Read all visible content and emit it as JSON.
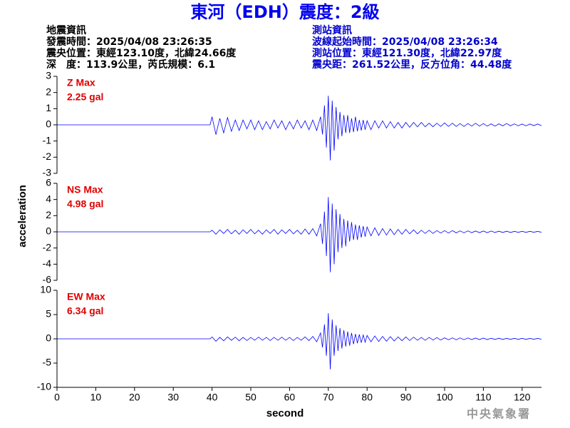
{
  "header": {
    "title": "東河（EDH）震度：2級",
    "left": [
      "地震資訊",
      "發震時間：2025/04/08 23:26:35",
      "震央位置：東經123.10度，北緯24.66度",
      "深　度：113.9公里，芮氏規模：6.1"
    ],
    "right": [
      "測站資訊",
      "波線起始時間：2025/04/08 23:26:34",
      "測站位置：東經121.30度，北緯22.97度",
      "震央距：261.52公里，反方位角：44.48度"
    ]
  },
  "footer": "中央氣象署",
  "chart_data": [
    {
      "type": "line",
      "label": "Z Max",
      "max_label": "2.25 gal",
      "color": "#0000ff",
      "label_color": "#e00000",
      "xlim": [
        0,
        125
      ],
      "ylim": [
        -3,
        3
      ],
      "yticks": [
        -3,
        -2,
        -1,
        0,
        1,
        2,
        3
      ],
      "x": [
        0,
        39.5,
        40,
        41,
        42,
        43,
        44,
        45,
        46,
        47,
        48,
        49,
        50,
        51,
        52,
        53,
        54,
        55,
        56,
        57,
        58,
        59,
        60,
        61,
        62,
        63,
        64,
        65,
        66,
        67,
        68,
        68.5,
        69,
        69.5,
        70,
        70.5,
        71,
        71.5,
        72,
        72.5,
        73,
        73.5,
        74,
        74.5,
        75,
        75.5,
        76,
        76.5,
        77,
        77.5,
        78,
        78.5,
        79,
        79.5,
        80,
        81,
        82,
        83,
        84,
        85,
        86,
        87,
        88,
        89,
        90,
        91,
        92,
        93,
        94,
        95,
        96,
        97,
        98,
        99,
        100,
        101,
        102,
        103,
        104,
        105,
        106,
        107,
        108,
        109,
        110,
        111,
        112,
        113,
        114,
        115,
        116,
        117,
        118,
        119,
        120,
        121,
        122,
        123,
        124,
        125
      ],
      "values": [
        0,
        0,
        0.5,
        -0.6,
        0.4,
        -0.5,
        0.45,
        -0.4,
        0.3,
        -0.35,
        0.3,
        -0.25,
        0.3,
        -0.3,
        0.25,
        -0.3,
        0.2,
        -0.25,
        0.3,
        -0.2,
        0.25,
        -0.3,
        0.2,
        -0.25,
        0.3,
        -0.2,
        0.25,
        -0.3,
        0.3,
        -0.35,
        0.5,
        -0.6,
        1.2,
        -1.4,
        1.8,
        -2.2,
        1.5,
        -1.6,
        1.1,
        -0.9,
        0.8,
        -0.7,
        0.6,
        -0.5,
        0.6,
        -0.5,
        0.4,
        -0.45,
        0.5,
        -0.4,
        0.3,
        -0.35,
        0.3,
        -0.3,
        0.25,
        -0.3,
        0.25,
        -0.2,
        0.25,
        -0.2,
        0.2,
        -0.2,
        0.15,
        -0.2,
        0.15,
        -0.15,
        0.15,
        -0.12,
        0.15,
        -0.12,
        0.1,
        -0.12,
        0.1,
        -0.1,
        0.12,
        -0.1,
        0.1,
        -0.1,
        0.08,
        -0.1,
        0.08,
        -0.08,
        0.1,
        -0.08,
        0.08,
        -0.08,
        0.06,
        -0.08,
        0.06,
        -0.06,
        0.08,
        -0.06,
        0.06,
        -0.06,
        0.05,
        -0.06,
        0.05,
        -0.05,
        0.05,
        -0.05
      ]
    },
    {
      "type": "line",
      "label": "NS Max",
      "max_label": "4.98 gal",
      "color": "#0000ff",
      "label_color": "#e00000",
      "ylabel": "acceleration",
      "xlim": [
        0,
        125
      ],
      "ylim": [
        -6,
        6
      ],
      "yticks": [
        -6,
        -4,
        -2,
        0,
        2,
        4,
        6
      ],
      "x": [
        0,
        39.5,
        40,
        41,
        42,
        43,
        44,
        45,
        46,
        47,
        48,
        49,
        50,
        51,
        52,
        53,
        54,
        55,
        56,
        57,
        58,
        59,
        60,
        61,
        62,
        63,
        64,
        65,
        66,
        67,
        68,
        68.5,
        69,
        69.5,
        70,
        70.5,
        71,
        71.5,
        72,
        72.5,
        73,
        73.5,
        74,
        74.5,
        75,
        75.5,
        76,
        76.5,
        77,
        77.5,
        78,
        78.5,
        79,
        79.5,
        80,
        81,
        82,
        83,
        84,
        85,
        86,
        87,
        88,
        89,
        90,
        91,
        92,
        93,
        94,
        95,
        96,
        97,
        98,
        99,
        100,
        101,
        102,
        103,
        104,
        105,
        106,
        107,
        108,
        109,
        110,
        111,
        112,
        113,
        114,
        115,
        116,
        117,
        118,
        119,
        120,
        121,
        122,
        123,
        124,
        125
      ],
      "values": [
        0,
        0,
        0.2,
        -0.3,
        0.25,
        -0.2,
        0.3,
        -0.25,
        0.2,
        -0.3,
        0.25,
        -0.2,
        0.3,
        -0.25,
        0.2,
        -0.3,
        0.25,
        -0.2,
        0.3,
        -0.3,
        0.25,
        -0.2,
        0.3,
        -0.25,
        0.2,
        -0.3,
        0.35,
        -0.3,
        0.4,
        -0.5,
        1.0,
        -1.5,
        2.5,
        -3.0,
        4.3,
        -5.0,
        3.5,
        -4.0,
        2.8,
        -2.5,
        2.2,
        -2.0,
        1.6,
        -1.8,
        1.4,
        -1.2,
        1.2,
        -1.0,
        0.9,
        -1.0,
        0.8,
        -0.7,
        0.7,
        -0.6,
        0.6,
        -0.5,
        0.5,
        -0.45,
        0.4,
        -0.4,
        0.35,
        -0.35,
        0.3,
        -0.3,
        0.3,
        -0.25,
        0.25,
        -0.25,
        0.2,
        -0.2,
        0.2,
        -0.2,
        0.15,
        -0.15,
        0.15,
        -0.15,
        0.15,
        -0.12,
        0.12,
        -0.12,
        0.12,
        -0.1,
        0.1,
        -0.1,
        0.1,
        -0.1,
        0.1,
        -0.08,
        0.08,
        -0.08,
        0.08,
        -0.08,
        0.06,
        -0.06,
        0.06,
        -0.06,
        0.06,
        -0.05,
        0.05,
        -0.05
      ]
    },
    {
      "type": "line",
      "label": "EW Max",
      "max_label": "6.34 gal",
      "color": "#0000ff",
      "label_color": "#e00000",
      "xlabel": "second",
      "xlim": [
        0,
        125
      ],
      "xticks": [
        0,
        10,
        20,
        30,
        40,
        50,
        60,
        70,
        80,
        90,
        100,
        110,
        120
      ],
      "ylim": [
        -10,
        10
      ],
      "yticks": [
        -10,
        -5,
        0,
        5,
        10
      ],
      "x": [
        0,
        39.5,
        40,
        41,
        42,
        43,
        44,
        45,
        46,
        47,
        48,
        49,
        50,
        51,
        52,
        53,
        54,
        55,
        56,
        57,
        58,
        59,
        60,
        61,
        62,
        63,
        64,
        65,
        66,
        67,
        68,
        68.5,
        69,
        69.5,
        70,
        70.5,
        71,
        71.5,
        72,
        72.5,
        73,
        73.5,
        74,
        74.5,
        75,
        75.5,
        76,
        76.5,
        77,
        77.5,
        78,
        78.5,
        79,
        79.5,
        80,
        81,
        82,
        83,
        84,
        85,
        86,
        87,
        88,
        89,
        90,
        91,
        92,
        93,
        94,
        95,
        96,
        97,
        98,
        99,
        100,
        101,
        102,
        103,
        104,
        105,
        106,
        107,
        108,
        109,
        110,
        111,
        112,
        113,
        114,
        115,
        116,
        117,
        118,
        119,
        120,
        121,
        122,
        123,
        124,
        125
      ],
      "values": [
        0,
        0,
        0.4,
        -0.5,
        0.3,
        -0.4,
        0.4,
        -0.3,
        0.35,
        -0.4,
        0.3,
        -0.35,
        0.3,
        -0.3,
        0.35,
        -0.3,
        0.3,
        -0.35,
        0.3,
        -0.3,
        0.35,
        -0.3,
        0.3,
        -0.35,
        0.3,
        -0.3,
        0.4,
        -0.35,
        0.5,
        -0.6,
        1.2,
        -1.8,
        3.0,
        -3.5,
        5.3,
        -6.3,
        4.0,
        -3.5,
        2.8,
        -2.5,
        2.2,
        -2.0,
        1.8,
        -1.6,
        1.5,
        -1.4,
        1.2,
        -1.1,
        1.0,
        -0.9,
        0.9,
        -0.8,
        0.8,
        -0.7,
        0.7,
        -0.6,
        0.6,
        -0.55,
        0.5,
        -0.5,
        0.45,
        -0.45,
        0.4,
        -0.4,
        0.4,
        -0.35,
        0.35,
        -0.3,
        0.3,
        -0.3,
        0.3,
        -0.25,
        0.25,
        -0.25,
        0.2,
        -0.2,
        0.2,
        -0.2,
        0.2,
        -0.18,
        0.18,
        -0.15,
        0.15,
        -0.15,
        0.15,
        -0.15,
        0.12,
        -0.12,
        0.12,
        -0.12,
        0.1,
        -0.1,
        0.1,
        -0.1,
        0.1,
        -0.1,
        0.08,
        -0.08,
        0.08,
        -0.08
      ]
    }
  ]
}
